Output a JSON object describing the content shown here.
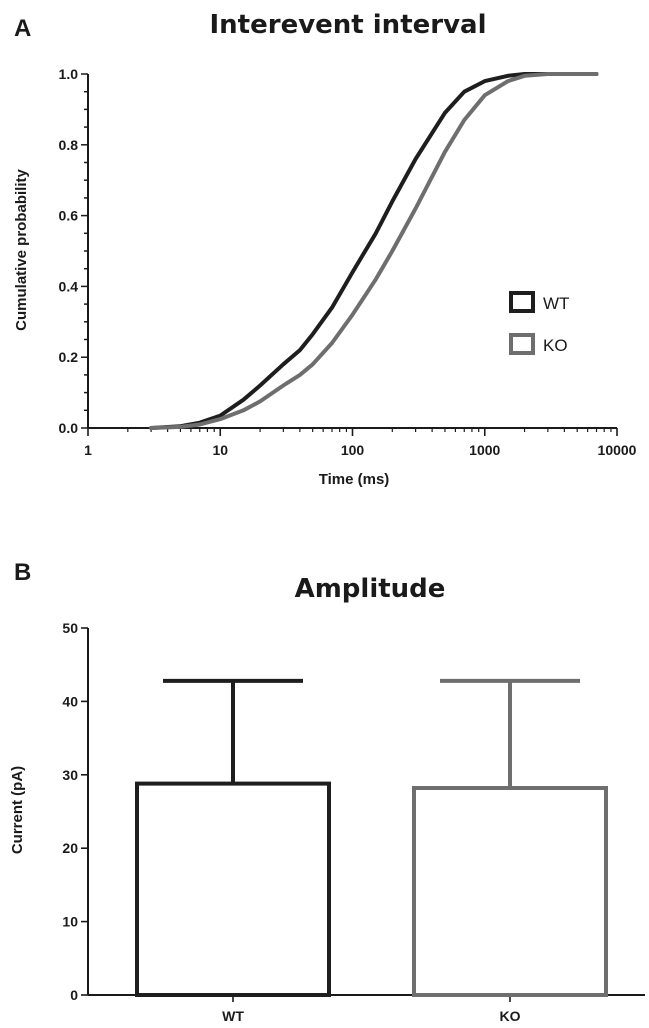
{
  "chart_data": [
    {
      "panel": "A",
      "type": "line",
      "title": "Interevent interval",
      "xlabel": "Time (ms)",
      "ylabel": "Cumulative probability",
      "xscale": "log",
      "xlim": [
        1,
        10000
      ],
      "ylim": [
        0,
        1.0
      ],
      "x_ticks": [
        "1",
        "10",
        "100",
        "1000",
        "10000"
      ],
      "y_ticks": [
        "0.0",
        "0.2",
        "0.4",
        "0.6",
        "0.8",
        "1.0"
      ],
      "legend": "right-middle",
      "series": [
        {
          "name": "WT",
          "color": "#1e1e1e",
          "x": [
            3,
            5,
            7,
            10,
            15,
            20,
            30,
            40,
            50,
            70,
            100,
            150,
            200,
            300,
            500,
            700,
            1000,
            1500,
            2000,
            3000,
            5000,
            7000
          ],
          "y": [
            0.0,
            0.005,
            0.015,
            0.035,
            0.08,
            0.12,
            0.18,
            0.22,
            0.265,
            0.34,
            0.44,
            0.55,
            0.64,
            0.76,
            0.89,
            0.95,
            0.98,
            0.995,
            1.0,
            1.0,
            1.0,
            1.0
          ]
        },
        {
          "name": "KO",
          "color": "#6e6e6e",
          "x": [
            3,
            5,
            7,
            10,
            15,
            20,
            30,
            40,
            50,
            70,
            100,
            150,
            200,
            300,
            500,
            700,
            1000,
            1500,
            2000,
            3000,
            5000,
            7000
          ],
          "y": [
            0.0,
            0.003,
            0.01,
            0.025,
            0.05,
            0.075,
            0.12,
            0.15,
            0.18,
            0.24,
            0.32,
            0.42,
            0.5,
            0.62,
            0.78,
            0.87,
            0.94,
            0.98,
            0.995,
            1.0,
            1.0,
            1.0
          ]
        }
      ]
    },
    {
      "panel": "B",
      "type": "bar",
      "title": "Amplitude",
      "xlabel": "",
      "ylabel": "Current (pA)",
      "ylim": [
        0,
        50
      ],
      "y_ticks": [
        "0",
        "10",
        "20",
        "30",
        "40",
        "50"
      ],
      "categories": [
        "WT",
        "KO"
      ],
      "values": [
        28.8,
        28.2
      ],
      "error_upper": [
        42.8,
        42.8
      ],
      "colors": [
        "#1e1e1e",
        "#6e6e6e"
      ]
    }
  ]
}
